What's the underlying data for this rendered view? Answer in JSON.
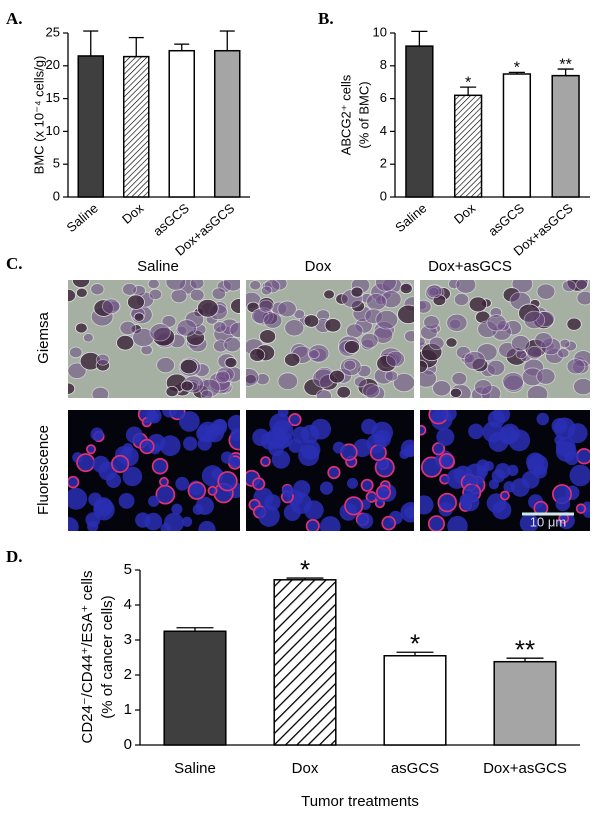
{
  "chart_data": [
    {
      "type": "bar",
      "panel": "A.",
      "ylabel": [
        "BMC (x 10⁻⁴ cells/g)"
      ],
      "categories": [
        "Saline",
        "Dox",
        "asGCS",
        "Dox+asGCS"
      ],
      "values": [
        21.5,
        21.4,
        22.3,
        22.3
      ],
      "errors": [
        3.8,
        2.9,
        1.0,
        3.0
      ],
      "colors": [
        "#3f3f3f",
        "#ffffff",
        "#ffffff",
        "#a5a5a5"
      ],
      "hatch": [
        false,
        true,
        false,
        false
      ],
      "ylim": [
        0,
        25
      ],
      "yticks": [
        0,
        5,
        10,
        15,
        20,
        25
      ]
    },
    {
      "type": "bar",
      "panel": "B.",
      "ylabel": [
        "ABCG2⁺ cells",
        "(% of BMC)"
      ],
      "categories": [
        "Saline",
        "Dox",
        "asGCS",
        "Dox+asGCS"
      ],
      "values": [
        9.2,
        6.2,
        7.5,
        7.4
      ],
      "errors": [
        0.9,
        0.5,
        0.1,
        0.4
      ],
      "annotations": [
        null,
        "*",
        "*",
        "**"
      ],
      "colors": [
        "#3f3f3f",
        "#ffffff",
        "#ffffff",
        "#a5a5a5"
      ],
      "hatch": [
        false,
        true,
        false,
        false
      ],
      "ylim": [
        0,
        10
      ],
      "yticks": [
        0,
        2,
        4,
        6,
        8,
        10
      ]
    },
    {
      "type": "bar",
      "panel": "D.",
      "ylabel": [
        "CD24⁻/CD44⁺/ESA⁺ cells",
        "(% of cancer cells)"
      ],
      "xlabel": "Tumor treatments",
      "categories": [
        "Saline",
        "Dox",
        "asGCS",
        "Dox+asGCS"
      ],
      "values": [
        3.25,
        4.72,
        2.55,
        2.38
      ],
      "errors": [
        0.1,
        0.05,
        0.1,
        0.1
      ],
      "annotations": [
        null,
        "*",
        "*",
        "**"
      ],
      "colors": [
        "#3f3f3f",
        "#ffffff",
        "#ffffff",
        "#a5a5a5"
      ],
      "hatch": [
        false,
        true,
        false,
        false
      ],
      "ylim": [
        0,
        5
      ],
      "yticks": [
        0,
        1,
        2,
        3,
        4,
        5
      ]
    }
  ],
  "panel_c": {
    "label": "C.",
    "columns": [
      "Saline",
      "Dox",
      "Dox+asGCS"
    ],
    "rows": [
      "Giemsa",
      "Fluorescence"
    ],
    "scale_bar": "10 μm"
  }
}
